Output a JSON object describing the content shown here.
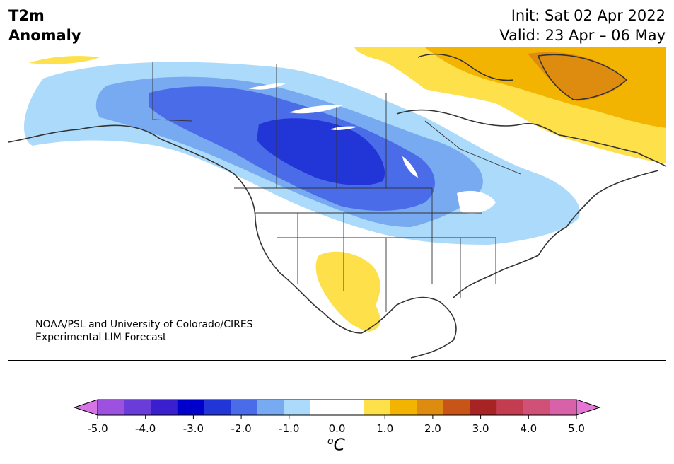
{
  "header": {
    "title_line1": "T2m",
    "title_line2": "Anomaly",
    "init": "Init: Sat 02 Apr 2022",
    "valid": "Valid: 23 Apr – 06 May"
  },
  "credit": {
    "line1": "NOAA/PSL and University of Colorado/CIRES",
    "line2": "Experimental LIM Forecast"
  },
  "colorbar": {
    "colors": [
      "#d674e6",
      "#9c52de",
      "#6a3cd8",
      "#3a1fcf",
      "#0000cc",
      "#2236d8",
      "#4a6ce8",
      "#78aaf2",
      "#acdafb",
      "#ffffff",
      "#ffffff",
      "#fde04a",
      "#f2b400",
      "#de8c10",
      "#c85418",
      "#a82424",
      "#c43c50",
      "#d05078",
      "#d862a8",
      "#e676d6"
    ],
    "ticks": [
      "-5.0",
      "-4.0",
      "-3.0",
      "-2.0",
      "-1.0",
      "0.0",
      "1.0",
      "2.0",
      "3.0",
      "4.0",
      "5.0"
    ],
    "unit_sup": "o",
    "unit": "C"
  },
  "anomaly_colors": {
    "neg_minus_0_5": "#acdafb",
    "neg_minus_1": "#78aaf2",
    "neg_minus_1_5": "#4a6ce8",
    "neg_minus_2": "#2236d8",
    "pos_0_5": "#fde04a",
    "pos_1": "#f2b400",
    "pos_1_5": "#de8c10",
    "coast": "#333333"
  }
}
